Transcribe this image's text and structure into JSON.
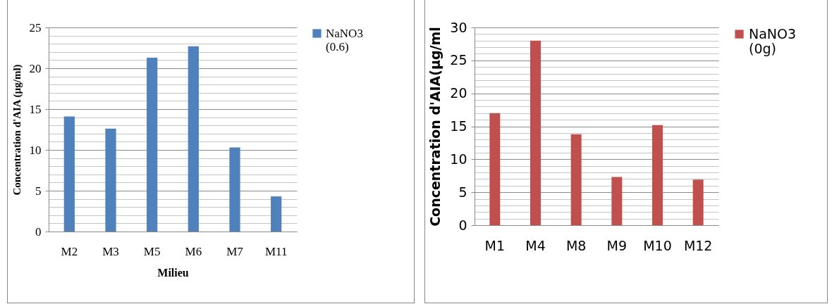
{
  "chart_data": [
    {
      "type": "bar",
      "xlabel": "Milieu",
      "ylabel": "Concentration d'AIA (µg/ml)",
      "categories": [
        "M2",
        "M3",
        "M5",
        "M6",
        "M7",
        "M11"
      ],
      "series": [
        {
          "name": "NaNO3 (0.6)",
          "color": "#4f81bd",
          "values": [
            14.1,
            12.6,
            21.3,
            22.7,
            10.3,
            4.3
          ]
        }
      ],
      "ylim": [
        0,
        25
      ],
      "yticks": [
        0,
        {
          "value": 1,
          "label": null
        },
        {
          "value": 2,
          "label": null
        },
        {
          "value": 3,
          "label": null
        },
        {
          "value": 4,
          "label": null
        },
        5,
        {
          "value": 6,
          "label": null
        },
        {
          "value": 7,
          "label": null
        },
        {
          "value": 8,
          "label": null
        },
        {
          "value": 9,
          "label": null
        },
        10,
        {
          "value": 11,
          "label": null
        },
        {
          "value": 12,
          "label": null
        },
        {
          "value": 13,
          "label": null
        },
        {
          "value": 14,
          "label": null
        },
        15,
        {
          "value": 16,
          "label": null
        },
        {
          "value": 17,
          "label": null
        },
        {
          "value": 18,
          "label": null
        },
        {
          "value": 19,
          "label": null
        },
        20,
        {
          "value": 21,
          "label": null
        },
        {
          "value": 22,
          "label": null
        },
        {
          "value": 23,
          "label": null
        },
        {
          "value": 24,
          "label": null
        },
        25
      ],
      "grid": "y",
      "legend": "right"
    },
    {
      "type": "bar",
      "ylabel": "Concentration d'AIA(µg/ml",
      "categories": [
        "M1",
        "M4",
        "M8",
        "M9",
        "M10",
        "M12"
      ],
      "series": [
        {
          "name": "NaNO3 (0g)",
          "color": "#c0504d",
          "values": [
            17.0,
            28.0,
            13.8,
            7.3,
            15.2,
            6.9
          ]
        }
      ],
      "ylim": [
        0,
        30
      ],
      "yticks": [
        0,
        {
          "value": 1,
          "label": null
        },
        {
          "value": 2,
          "label": null
        },
        {
          "value": 3,
          "label": null
        },
        {
          "value": 4,
          "label": null
        },
        5,
        {
          "value": 6,
          "label": null
        },
        {
          "value": 7,
          "label": null
        },
        {
          "value": 8,
          "label": null
        },
        {
          "value": 9,
          "label": null
        },
        10,
        {
          "value": 11,
          "label": null
        },
        {
          "value": 12,
          "label": null
        },
        {
          "value": 13,
          "label": null
        },
        {
          "value": 14,
          "label": null
        },
        15,
        {
          "value": 16,
          "label": null
        },
        {
          "value": 17,
          "label": null
        },
        {
          "value": 18,
          "label": null
        },
        {
          "value": 19,
          "label": null
        },
        20,
        {
          "value": 21,
          "label": null
        },
        {
          "value": 22,
          "label": null
        },
        {
          "value": 23,
          "label": null
        },
        {
          "value": 24,
          "label": null
        },
        25,
        {
          "value": 26,
          "label": null
        },
        {
          "value": 27,
          "label": null
        },
        {
          "value": 28,
          "label": null
        },
        {
          "value": 29,
          "label": null
        },
        30
      ],
      "grid": "y",
      "legend": "right"
    }
  ]
}
